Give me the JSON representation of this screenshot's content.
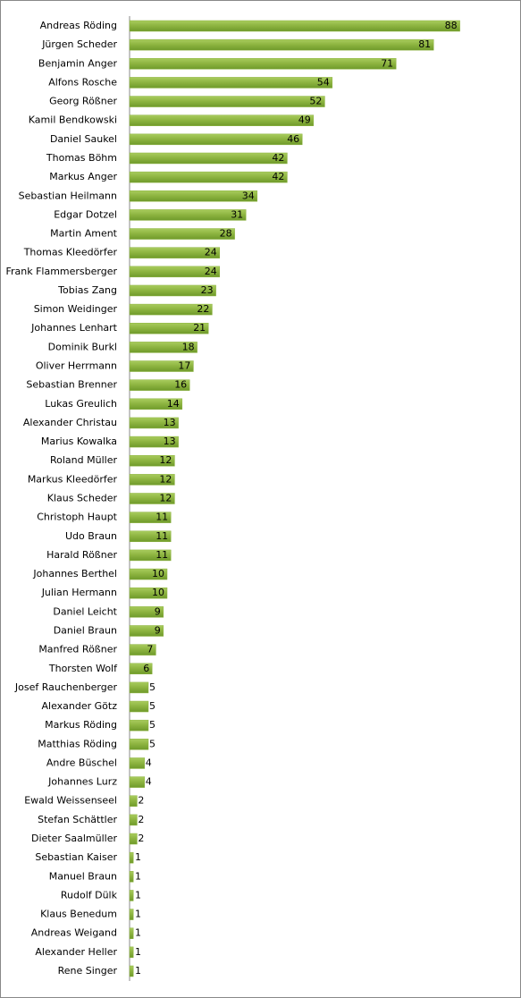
{
  "chart_data": {
    "type": "bar",
    "orientation": "horizontal",
    "color": "#8cb33f",
    "categories": [
      "Andreas Röding",
      "Jürgen Scheder",
      "Benjamin Anger",
      "Alfons Rosche",
      "Georg Rößner",
      "Kamil Bendkowski",
      "Daniel Saukel",
      "Thomas Böhm",
      "Markus Anger",
      "Sebastian Heilmann",
      "Edgar Dotzel",
      "Martin Ament",
      "Thomas Kleedörfer",
      "Frank Flammersberger",
      "Tobias Zang",
      "Simon Weidinger",
      "Johannes Lenhart",
      "Dominik Burkl",
      "Oliver Herrmann",
      "Sebastian Brenner",
      "Lukas Greulich",
      "Alexander Christau",
      "Marius Kowalka",
      "Roland Müller",
      "Markus Kleedörfer",
      "Klaus Scheder",
      "Christoph Haupt",
      "Udo Braun",
      "Harald Rößner",
      "Johannes Berthel",
      "Julian Hermann",
      "Daniel Leicht",
      "Daniel Braun",
      "Manfred Rößner",
      "Thorsten Wolf",
      "Josef Rauchenberger",
      "Alexander Götz",
      "Markus Röding",
      "Matthias Röding",
      "Andre Büschel",
      "Johannes Lurz",
      "Ewald Weissenseel",
      "Stefan Schättler",
      "Dieter Saalmüller",
      "Sebastian Kaiser",
      "Manuel Braun",
      "Rudolf Dülk",
      "Klaus Benedum",
      "Andreas Weigand",
      "Alexander Heller",
      "Rene Singer"
    ],
    "values": [
      88,
      81,
      71,
      54,
      52,
      49,
      46,
      42,
      42,
      34,
      31,
      28,
      24,
      24,
      23,
      22,
      21,
      18,
      17,
      16,
      14,
      13,
      13,
      12,
      12,
      12,
      11,
      11,
      11,
      10,
      10,
      9,
      9,
      7,
      6,
      5,
      5,
      5,
      5,
      4,
      4,
      2,
      2,
      2,
      1,
      1,
      1,
      1,
      1,
      1,
      1
    ]
  }
}
